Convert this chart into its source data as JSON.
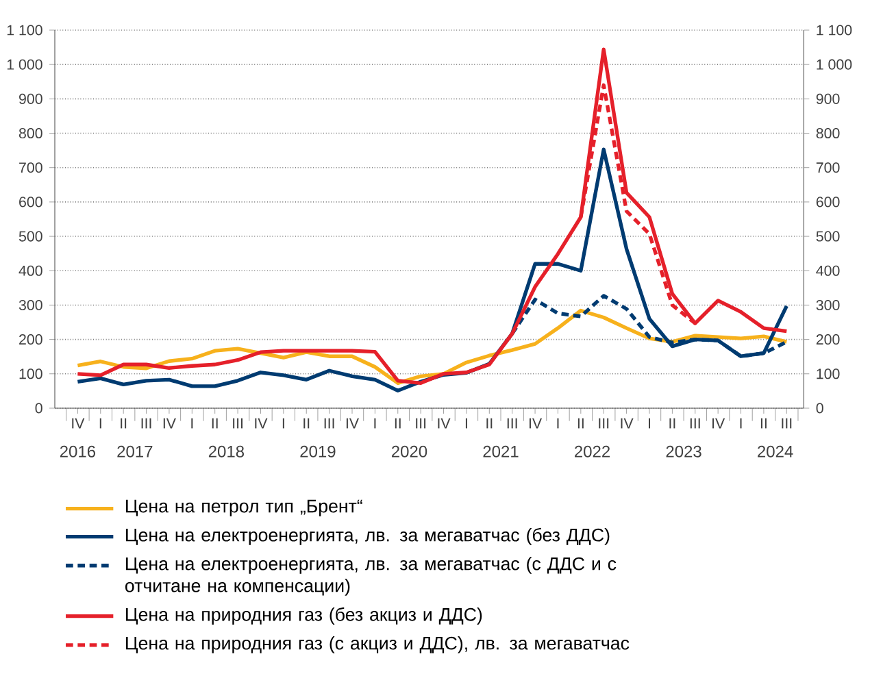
{
  "chart_data": {
    "type": "line",
    "categories": [
      "IV",
      "I",
      "II",
      "III",
      "IV",
      "I",
      "II",
      "III",
      "IV",
      "I",
      "II",
      "III",
      "IV",
      "I",
      "II",
      "III",
      "IV",
      "I",
      "II",
      "III",
      "IV",
      "I",
      "II",
      "III",
      "IV",
      "I",
      "II",
      "III",
      "IV",
      "I",
      "II",
      "III"
    ],
    "series": [
      {
        "name": "Цена на петрол тип „Брент“",
        "color": "#f7b11c",
        "values": [
          124,
          136,
          120,
          116,
          137,
          144,
          167,
          173,
          160,
          147,
          163,
          151,
          151,
          120,
          73,
          93,
          100,
          133,
          153,
          169,
          187,
          233,
          284,
          264,
          233,
          203,
          193,
          211,
          207,
          203,
          209,
          193
        ]
      },
      {
        "name": "Цена на електроенергията, лв. за мегаватчас (без ДДС)",
        "color": "#003b71",
        "values": [
          77,
          87,
          69,
          80,
          83,
          64,
          64,
          80,
          104,
          96,
          83,
          109,
          93,
          83,
          51,
          77,
          97,
          103,
          129,
          217,
          420,
          420,
          400,
          753,
          463,
          260,
          180,
          200,
          197,
          151,
          160,
          297
        ]
      },
      {
        "name": "Цена на електроенергията, лв. за мегаватчас (с ДДС и с отчитане на компенсации)",
        "color": "#003b71",
        "line_style": "dashed",
        "values": [
          null,
          null,
          null,
          null,
          null,
          null,
          null,
          null,
          null,
          null,
          null,
          null,
          null,
          null,
          null,
          null,
          null,
          null,
          null,
          217,
          316,
          276,
          267,
          327,
          289,
          207,
          191,
          200,
          197,
          151,
          160,
          193
        ]
      },
      {
        "name": "Цена на природния газ (без акциз и ДДС)",
        "color": "#e5202a",
        "values": [
          100,
          96,
          127,
          127,
          117,
          123,
          127,
          140,
          163,
          167,
          167,
          167,
          167,
          164,
          80,
          73,
          100,
          104,
          127,
          217,
          353,
          449,
          556,
          1044,
          627,
          556,
          333,
          247,
          313,
          280,
          233,
          224
        ]
      },
      {
        "name": "Цена на природния газ (с акциз и ДДС), лв. за мегаватчас",
        "color": "#e5202a",
        "line_style": "dashed",
        "values": [
          null,
          null,
          null,
          null,
          null,
          null,
          null,
          null,
          null,
          null,
          null,
          null,
          null,
          null,
          null,
          null,
          null,
          null,
          null,
          null,
          null,
          null,
          556,
          940,
          573,
          507,
          300,
          247,
          null,
          null,
          null,
          null
        ]
      }
    ],
    "annotations": [
      "2016",
      "2017",
      "2018",
      "2019",
      "2020",
      "2021",
      "2022",
      "2023",
      "2024"
    ],
    "ylim": [
      0,
      1100
    ],
    "yticks": [
      0,
      100,
      200,
      300,
      400,
      500,
      600,
      700,
      800,
      900,
      {
        "value": 1000,
        "label": "1 000"
      },
      {
        "value": 1100,
        "label": "1 100"
      }
    ],
    "y2lim": [
      0,
      1100
    ],
    "y2ticks": [
      0,
      100,
      200,
      300,
      400,
      500,
      600,
      700,
      800,
      900,
      {
        "value": 1000,
        "label": "1 000"
      },
      {
        "value": 1100,
        "label": "1 100"
      }
    ],
    "grid": "y",
    "legend": "bottom"
  }
}
